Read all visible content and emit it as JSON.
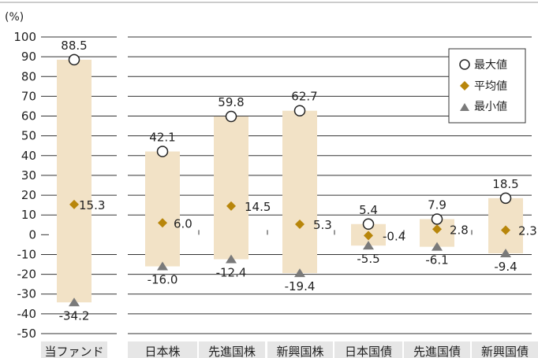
{
  "chart_data": {
    "type": "range",
    "unit_label": "(%)",
    "yticks": [
      "100",
      "90",
      "80",
      "70",
      "60",
      "50",
      "40",
      "30",
      "20",
      "10",
      "0",
      "-10",
      "-20",
      "-30",
      "-40",
      "-50"
    ],
    "ylim": [
      -50,
      100
    ],
    "categories": [
      "当ファンド",
      "日本株",
      "先進国株",
      "新興国株",
      "日本国債",
      "先進国債",
      "新興国債"
    ],
    "series": [
      {
        "name": "最大値",
        "values": [
          88.5,
          42.1,
          59.8,
          62.7,
          5.4,
          7.9,
          18.5
        ],
        "labels": [
          "88.5",
          "42.1",
          "59.8",
          "62.7",
          "5.4",
          "7.9",
          "18.5"
        ]
      },
      {
        "name": "平均値",
        "values": [
          15.3,
          6.0,
          14.5,
          5.3,
          -0.4,
          2.8,
          2.3
        ],
        "labels": [
          "15.3",
          "6.0",
          "14.5",
          "5.3",
          "-0.4",
          "2.8",
          "2.3"
        ]
      },
      {
        "name": "最小値",
        "values": [
          -34.2,
          -16.0,
          -12.4,
          -19.4,
          -5.5,
          -6.1,
          -9.4
        ],
        "labels": [
          "-34.2",
          "-16.0",
          "-12.4",
          "-19.4",
          "-5.5",
          "-6.1",
          "-9.4"
        ]
      }
    ],
    "legend_position": "top-right",
    "grid": true,
    "colors": {
      "bar": "#f2e2c6",
      "avg_marker": "#b8860b",
      "min_marker": "#7a7a7a",
      "max_marker_stroke": "#222222",
      "grid": "#333333"
    }
  }
}
